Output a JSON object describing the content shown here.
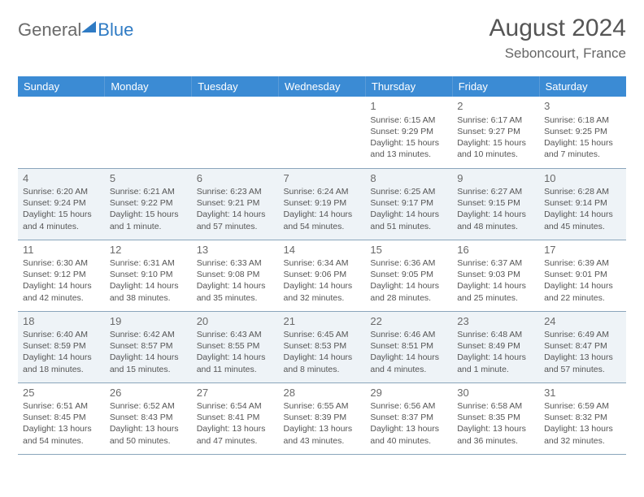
{
  "logo": {
    "general": "General",
    "blue": "Blue"
  },
  "title": "August 2024",
  "location": "Seboncourt, France",
  "weekdays": [
    "Sunday",
    "Monday",
    "Tuesday",
    "Wednesday",
    "Thursday",
    "Friday",
    "Saturday"
  ],
  "colors": {
    "header_bg": "#3b8bd4",
    "header_text": "#ffffff",
    "row_odd_bg": "#ffffff",
    "row_even_bg": "#eef3f7",
    "border": "#8aa5bb",
    "text": "#555555"
  },
  "first_weekday_index": 4,
  "days": [
    {
      "n": 1,
      "sr": "6:15 AM",
      "ss": "9:29 PM",
      "dl": "15 hours and 13 minutes."
    },
    {
      "n": 2,
      "sr": "6:17 AM",
      "ss": "9:27 PM",
      "dl": "15 hours and 10 minutes."
    },
    {
      "n": 3,
      "sr": "6:18 AM",
      "ss": "9:25 PM",
      "dl": "15 hours and 7 minutes."
    },
    {
      "n": 4,
      "sr": "6:20 AM",
      "ss": "9:24 PM",
      "dl": "15 hours and 4 minutes."
    },
    {
      "n": 5,
      "sr": "6:21 AM",
      "ss": "9:22 PM",
      "dl": "15 hours and 1 minute."
    },
    {
      "n": 6,
      "sr": "6:23 AM",
      "ss": "9:21 PM",
      "dl": "14 hours and 57 minutes."
    },
    {
      "n": 7,
      "sr": "6:24 AM",
      "ss": "9:19 PM",
      "dl": "14 hours and 54 minutes."
    },
    {
      "n": 8,
      "sr": "6:25 AM",
      "ss": "9:17 PM",
      "dl": "14 hours and 51 minutes."
    },
    {
      "n": 9,
      "sr": "6:27 AM",
      "ss": "9:15 PM",
      "dl": "14 hours and 48 minutes."
    },
    {
      "n": 10,
      "sr": "6:28 AM",
      "ss": "9:14 PM",
      "dl": "14 hours and 45 minutes."
    },
    {
      "n": 11,
      "sr": "6:30 AM",
      "ss": "9:12 PM",
      "dl": "14 hours and 42 minutes."
    },
    {
      "n": 12,
      "sr": "6:31 AM",
      "ss": "9:10 PM",
      "dl": "14 hours and 38 minutes."
    },
    {
      "n": 13,
      "sr": "6:33 AM",
      "ss": "9:08 PM",
      "dl": "14 hours and 35 minutes."
    },
    {
      "n": 14,
      "sr": "6:34 AM",
      "ss": "9:06 PM",
      "dl": "14 hours and 32 minutes."
    },
    {
      "n": 15,
      "sr": "6:36 AM",
      "ss": "9:05 PM",
      "dl": "14 hours and 28 minutes."
    },
    {
      "n": 16,
      "sr": "6:37 AM",
      "ss": "9:03 PM",
      "dl": "14 hours and 25 minutes."
    },
    {
      "n": 17,
      "sr": "6:39 AM",
      "ss": "9:01 PM",
      "dl": "14 hours and 22 minutes."
    },
    {
      "n": 18,
      "sr": "6:40 AM",
      "ss": "8:59 PM",
      "dl": "14 hours and 18 minutes."
    },
    {
      "n": 19,
      "sr": "6:42 AM",
      "ss": "8:57 PM",
      "dl": "14 hours and 15 minutes."
    },
    {
      "n": 20,
      "sr": "6:43 AM",
      "ss": "8:55 PM",
      "dl": "14 hours and 11 minutes."
    },
    {
      "n": 21,
      "sr": "6:45 AM",
      "ss": "8:53 PM",
      "dl": "14 hours and 8 minutes."
    },
    {
      "n": 22,
      "sr": "6:46 AM",
      "ss": "8:51 PM",
      "dl": "14 hours and 4 minutes."
    },
    {
      "n": 23,
      "sr": "6:48 AM",
      "ss": "8:49 PM",
      "dl": "14 hours and 1 minute."
    },
    {
      "n": 24,
      "sr": "6:49 AM",
      "ss": "8:47 PM",
      "dl": "13 hours and 57 minutes."
    },
    {
      "n": 25,
      "sr": "6:51 AM",
      "ss": "8:45 PM",
      "dl": "13 hours and 54 minutes."
    },
    {
      "n": 26,
      "sr": "6:52 AM",
      "ss": "8:43 PM",
      "dl": "13 hours and 50 minutes."
    },
    {
      "n": 27,
      "sr": "6:54 AM",
      "ss": "8:41 PM",
      "dl": "13 hours and 47 minutes."
    },
    {
      "n": 28,
      "sr": "6:55 AM",
      "ss": "8:39 PM",
      "dl": "13 hours and 43 minutes."
    },
    {
      "n": 29,
      "sr": "6:56 AM",
      "ss": "8:37 PM",
      "dl": "13 hours and 40 minutes."
    },
    {
      "n": 30,
      "sr": "6:58 AM",
      "ss": "8:35 PM",
      "dl": "13 hours and 36 minutes."
    },
    {
      "n": 31,
      "sr": "6:59 AM",
      "ss": "8:32 PM",
      "dl": "13 hours and 32 minutes."
    }
  ],
  "labels": {
    "sunrise": "Sunrise:",
    "sunset": "Sunset:",
    "daylight": "Daylight:"
  }
}
